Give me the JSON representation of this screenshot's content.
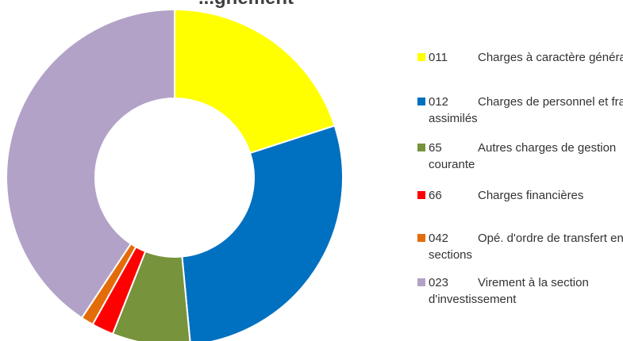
{
  "chart_data": {
    "type": "pie",
    "title": "...gnement",
    "slices": [
      {
        "code": "011",
        "label": "Charges à caractère général",
        "value": 20.0,
        "color": "#FFFF00"
      },
      {
        "code": "012",
        "label": "Charges de personnel et frais assimilés",
        "value": 28.5,
        "color": "#0070C0"
      },
      {
        "code": "65",
        "label": "Autres charges de gestion courante",
        "value": 7.5,
        "color": "#77933C"
      },
      {
        "code": "66",
        "label": "Charges financières",
        "value": 2.1,
        "color": "#FF0000"
      },
      {
        "code": "042",
        "label": "Opé. d'ordre de transfert entre sections",
        "value": 1.2,
        "color": "#E36C09"
      },
      {
        "code": "023",
        "label": "Virement à la section d'investissement",
        "value": 40.7,
        "color": "#B3A2C7"
      }
    ],
    "legend_position": "right"
  }
}
